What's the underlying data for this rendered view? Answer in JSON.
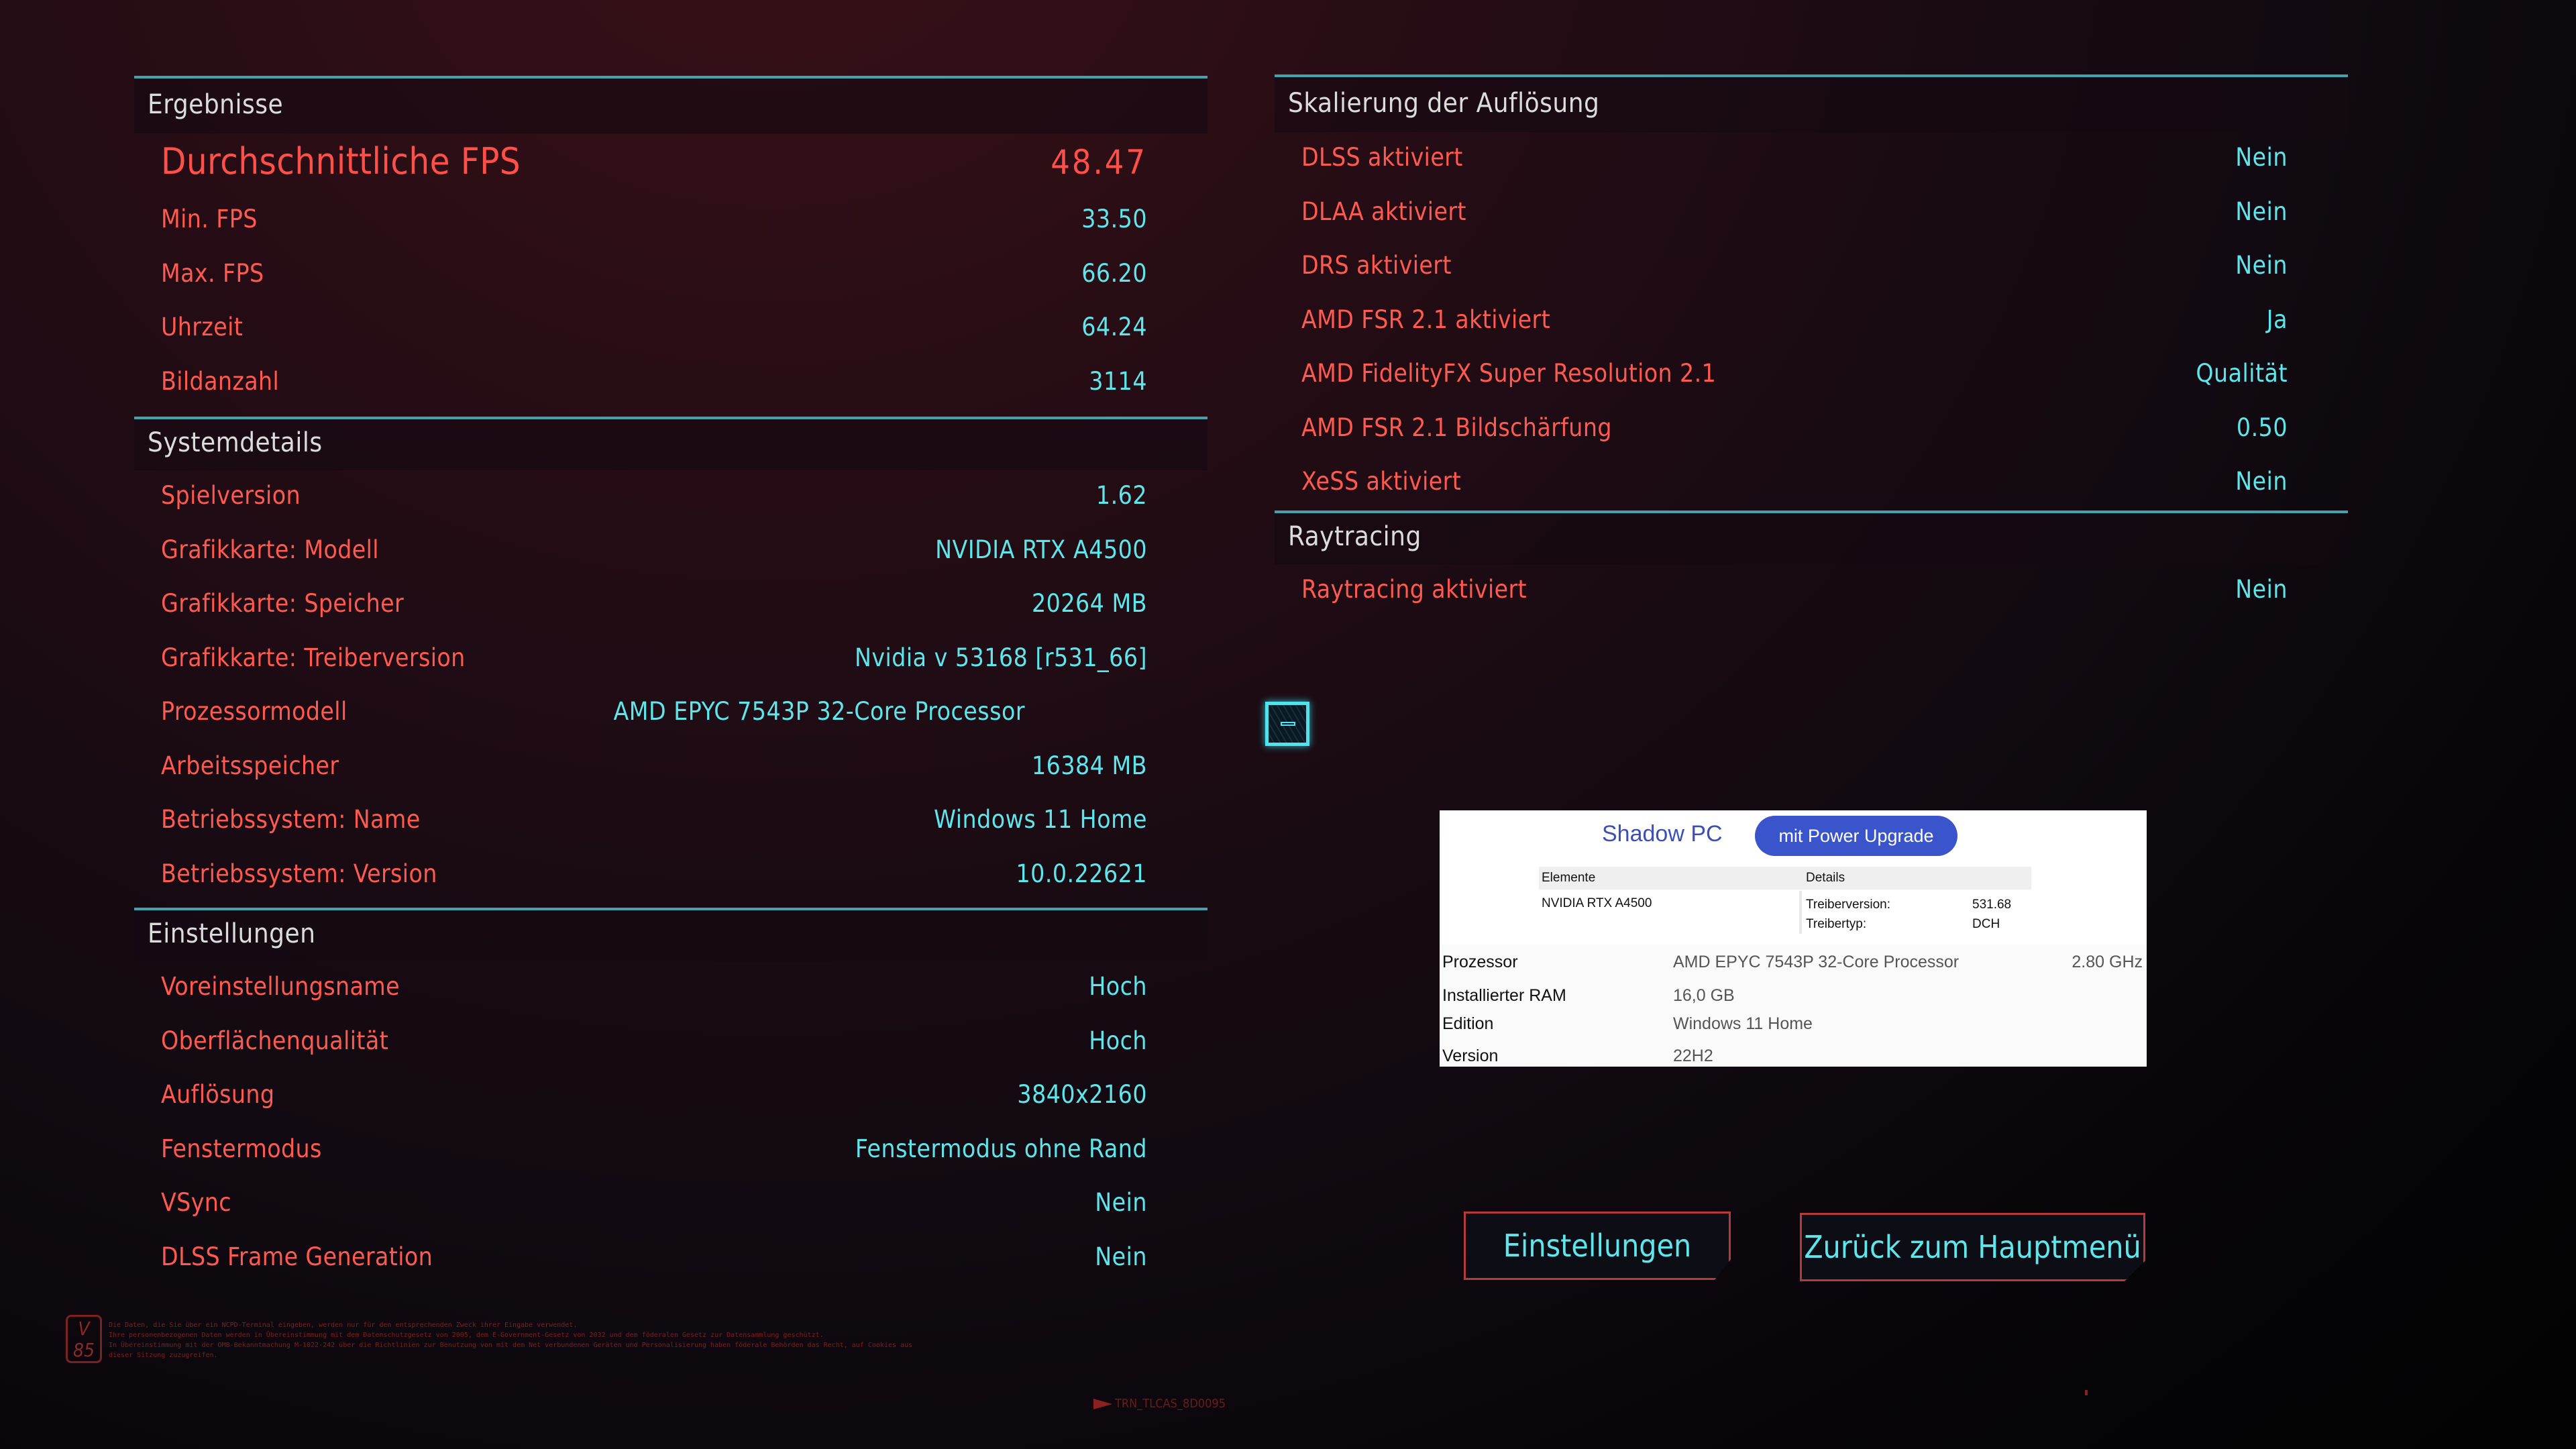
{
  "results": {
    "title": "Ergebnisse",
    "avg_fps_label": "Durchschnittliche FPS",
    "avg_fps": "48.47",
    "rows": [
      {
        "label": "Min. FPS",
        "value": "33.50"
      },
      {
        "label": "Max. FPS",
        "value": "66.20"
      },
      {
        "label": "Uhrzeit",
        "value": "64.24"
      },
      {
        "label": "Bildanzahl",
        "value": "3114"
      }
    ]
  },
  "system": {
    "title": "Systemdetails",
    "rows": [
      {
        "label": "Spielversion",
        "value": "1.62"
      },
      {
        "label": "Grafikkarte: Modell",
        "value": "NVIDIA RTX A4500"
      },
      {
        "label": "Grafikkarte: Speicher",
        "value": "20264 MB"
      },
      {
        "label": "Grafikkarte: Treiberversion",
        "value": "Nvidia v 53168 [r531_66]"
      },
      {
        "label": "Prozessormodell",
        "value": "AMD EPYC 7543P 32-Core Processor"
      },
      {
        "label": "Arbeitsspeicher",
        "value": "16384 MB"
      },
      {
        "label": "Betriebssystem: Name",
        "value": "Windows 11 Home"
      },
      {
        "label": "Betriebssystem: Version",
        "value": "10.0.22621"
      }
    ]
  },
  "settings": {
    "title": "Einstellungen",
    "rows": [
      {
        "label": "Voreinstellungsname",
        "value": "Hoch"
      },
      {
        "label": "Oberflächenqualität",
        "value": "Hoch"
      },
      {
        "label": "Auflösung",
        "value": "3840x2160"
      },
      {
        "label": "Fenstermodus",
        "value": "Fenstermodus ohne Rand"
      },
      {
        "label": "VSync",
        "value": "Nein"
      },
      {
        "label": "DLSS Frame Generation",
        "value": "Nein"
      }
    ]
  },
  "scaling": {
    "title": "Skalierung der Auflösung",
    "rows": [
      {
        "label": "DLSS aktiviert",
        "value": "Nein"
      },
      {
        "label": "DLAA aktiviert",
        "value": "Nein"
      },
      {
        "label": "DRS aktiviert",
        "value": "Nein"
      },
      {
        "label": "AMD FSR 2.1 aktiviert",
        "value": "Ja"
      },
      {
        "label": "AMD FidelityFX Super Resolution 2.1",
        "value": "Qualität"
      },
      {
        "label": "AMD FSR 2.1 Bildschärfung",
        "value": "0.50"
      },
      {
        "label": "XeSS aktiviert",
        "value": "Nein"
      }
    ]
  },
  "raytracing": {
    "title": "Raytracing",
    "rows": [
      {
        "label": "Raytracing aktiviert",
        "value": "Nein"
      }
    ]
  },
  "inset": {
    "brand": "Shadow PC",
    "badge": "mit Power Upgrade",
    "col1": "Elemente",
    "col2": "Details",
    "gpu": "NVIDIA RTX A4500",
    "driver_version_label": "Treiberversion:",
    "driver_version": "531.68",
    "driver_type_label": "Treibertyp:",
    "driver_type": "DCH",
    "cpu_label": "Prozessor",
    "cpu": "AMD EPYC 7543P 32-Core Processor",
    "cpu_speed": "2.80 GHz",
    "ram_label": "Installierter RAM",
    "ram": "16,0 GB",
    "edition_label": "Edition",
    "edition": "Windows 11 Home",
    "version_label": "Version",
    "version": "22H2"
  },
  "buttons": {
    "settings": "Einstellungen",
    "back": "Zurück zum Hauptmenü"
  },
  "footer": {
    "badge": "V 85",
    "legal": [
      "Die Daten, die Sie über ein NCPD-Terminal eingeben, werden nur für den entsprechenden Zweck ihrer Eingabe verwendet.",
      "Ihre personenbezogenen Daten werden in Übereinstimmung mit dem Datenschutzgesetz von 2005, dem E-Government-Gesetz von 2032 und dem föderalen Gesetz zur Datensammlung geschützt.",
      "In Übereinstimmung mit der OMB-Bekanntmachung M-1022-242 über die Richtlinien zur Benutzung von mit dem Net verbundenen Geräten und Personalisierung haben föderale Behörden das Recht, auf Cookies aus",
      "dieser Sitzung zuzugreifen."
    ],
    "code": "TRN_TLCAS_8D0095"
  },
  "colors": {
    "label": "#ff5a50",
    "value": "#5fe6ea",
    "accent_line": "#3fa4ad",
    "button_border": "#b43a3c"
  }
}
